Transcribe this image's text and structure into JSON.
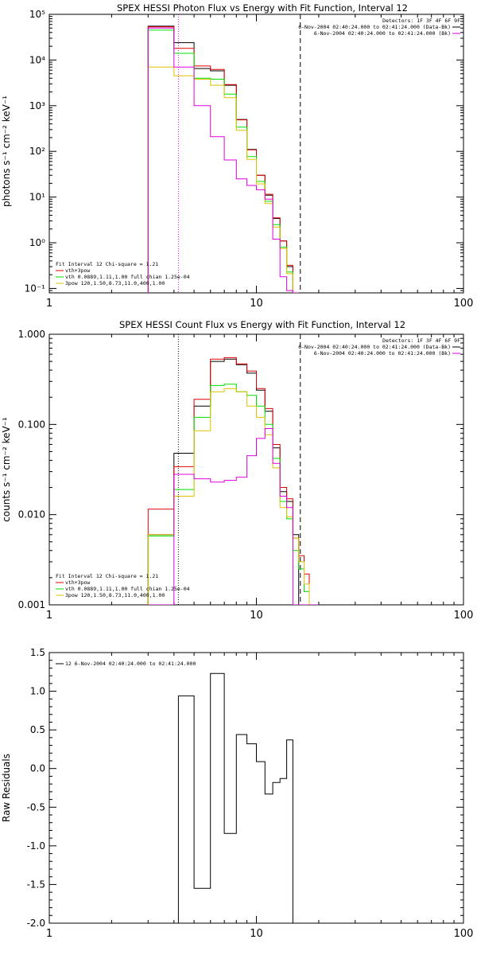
{
  "colors": {
    "black": "#000000",
    "red": "#e00000",
    "green": "#00e000",
    "yellow": "#e0c000",
    "magenta": "#e000e0"
  },
  "chart_data": [
    {
      "type": "line",
      "step": true,
      "title": "SPEX HESSI Photon Flux vs Energy with Fit Function, Interval 12",
      "ylabel": "photons s⁻¹ cm⁻² keV⁻¹",
      "xscale": "log",
      "yscale": "log",
      "xlim": [
        1,
        100
      ],
      "ylim": [
        0.08,
        100000
      ],
      "xticks": [
        {
          "v": 1,
          "label": "1"
        },
        {
          "v": 10,
          "label": "10"
        },
        {
          "v": 100,
          "label": "100"
        }
      ],
      "yticks": [
        {
          "v": 0.1,
          "label": "10⁻¹"
        },
        {
          "v": 1,
          "label": "10⁰"
        },
        {
          "v": 10,
          "label": "10¹"
        },
        {
          "v": 100,
          "label": "10²"
        },
        {
          "v": 1000,
          "label": "10³"
        },
        {
          "v": 10000,
          "label": "10⁴"
        },
        {
          "v": 100000,
          "label": "10⁵"
        }
      ],
      "edges": [
        3,
        4,
        5,
        6,
        7,
        8,
        9,
        10,
        11,
        12,
        13,
        14,
        15,
        16
      ],
      "series": [
        {
          "color": "black",
          "values": [
            55000,
            24000,
            6500,
            5800,
            2800,
            500,
            110,
            30,
            11,
            3.4,
            1.1,
            0.3,
            0.08
          ]
        },
        {
          "color": "red",
          "values": [
            53000,
            18000,
            7400,
            6200,
            2900,
            490,
            108,
            30,
            11.5,
            3.5,
            1.1,
            0.32,
            0.08
          ]
        },
        {
          "color": "green",
          "values": [
            45000,
            14000,
            4000,
            3800,
            1800,
            340,
            77,
            22,
            8.1,
            2.5,
            0.8,
            0.23,
            0.08
          ]
        },
        {
          "color": "yellow",
          "values": [
            7000,
            4500,
            3800,
            2800,
            1500,
            290,
            67,
            19.5,
            7.2,
            2.2,
            0.75,
            0.21,
            0.08
          ]
        },
        {
          "color": "magenta",
          "values": [
            50000,
            7000,
            1000,
            210,
            65,
            25,
            18,
            14.5,
            9,
            1.2,
            0.18,
            0.09,
            0.08
          ]
        }
      ],
      "vlines": [
        {
          "x": 4.2,
          "style": "dotted",
          "color": "magenta"
        },
        {
          "x": 16.3,
          "style": "dashed",
          "color": "black"
        }
      ],
      "legend_tr": {
        "lines": [
          {
            "text": "Detectors: 1F 3F 4F 6F 9F",
            "color": ""
          },
          {
            "text": "6-Nov-2004 02:40:24.000 to 02:41:24.000 (Data-Bk)",
            "color": "black"
          },
          {
            "text": "6-Nov-2004 02:40:24.000 to 02:41:24.000 (Bk)",
            "color": "magenta"
          }
        ]
      },
      "legend_bl": {
        "lines": [
          {
            "text": "Fit Interval 12   Chi-square = 1.21",
            "color": ""
          },
          {
            "text": "vth+3pow",
            "color": "red"
          },
          {
            "text": "vth 0.0889,1.11,1.00  full chian 1.25e-04",
            "color": "green"
          },
          {
            "text": "3pow 120,1.50,8.73,11.0,400,1.00",
            "color": "yellow"
          }
        ]
      }
    },
    {
      "type": "line",
      "step": true,
      "title": "SPEX HESSI Count Flux vs Energy with Fit Function, Interval 12",
      "ylabel": "counts s⁻¹ cm⁻² keV⁻¹",
      "xscale": "log",
      "yscale": "log",
      "xlim": [
        1,
        100
      ],
      "ylim": [
        0.001,
        1.0
      ],
      "xticks": [
        {
          "v": 1,
          "label": "1"
        },
        {
          "v": 10,
          "label": "10"
        },
        {
          "v": 100,
          "label": "100"
        }
      ],
      "yticks": [
        {
          "v": 0.001,
          "label": "0.001"
        },
        {
          "v": 0.01,
          "label": "0.010"
        },
        {
          "v": 0.1,
          "label": "0.100"
        },
        {
          "v": 1,
          "label": "1.000"
        }
      ],
      "edges": [
        3,
        4,
        5,
        6,
        7,
        8,
        9,
        10,
        11,
        12,
        13,
        14,
        15,
        16,
        17,
        18,
        19,
        20
      ],
      "series": [
        {
          "color": "black",
          "values": [
            0.006,
            0.048,
            0.16,
            0.5,
            0.53,
            0.46,
            0.37,
            0.24,
            0.14,
            0.055,
            0.018,
            0.014,
            0.006,
            0.001,
            0.001,
            0.001,
            0.001
          ]
        },
        {
          "color": "red",
          "values": [
            0.0115,
            0.034,
            0.19,
            0.53,
            0.55,
            0.47,
            0.39,
            0.25,
            0.15,
            0.06,
            0.02,
            0.015,
            0.0055,
            0.0035,
            0.0022,
            0.001,
            0.001
          ]
        },
        {
          "color": "green",
          "values": [
            0.0058,
            0.019,
            0.12,
            0.27,
            0.28,
            0.23,
            0.21,
            0.16,
            0.1,
            0.042,
            0.014,
            0.009,
            0.004,
            0.0025,
            0.0014,
            0.001,
            0.001
          ]
        },
        {
          "color": "yellow",
          "values": [
            0.006,
            0.016,
            0.085,
            0.23,
            0.25,
            0.23,
            0.16,
            0.12,
            0.077,
            0.033,
            0.012,
            0.0095,
            0.0055,
            0.003,
            0.0017,
            0.001,
            0.001
          ]
        },
        {
          "color": "magenta",
          "values": [
            0.001,
            0.028,
            0.025,
            0.023,
            0.024,
            0.026,
            0.045,
            0.07,
            0.09,
            0.037,
            0.016,
            0.012,
            0.001,
            0.001,
            0.001,
            0.001,
            0.001
          ]
        }
      ],
      "vlines": [
        {
          "x": 4.2,
          "style": "dotted",
          "color": "black"
        },
        {
          "x": 16.3,
          "style": "dashed",
          "color": "black"
        }
      ],
      "legend_tr": {
        "lines": [
          {
            "text": "Detectors: 1F 3F 4F 6F 9F",
            "color": ""
          },
          {
            "text": "6-Nov-2004 02:40:24.000 to 02:41:24.000 (Data-Bk)",
            "color": "black"
          },
          {
            "text": "6-Nov-2004 02:40:24.000 to 02:41:24.000 (Bk)",
            "color": "magenta"
          }
        ]
      },
      "legend_bl": {
        "lines": [
          {
            "text": "Fit Interval 12   Chi-square = 1.21",
            "color": ""
          },
          {
            "text": "vth+3pow",
            "color": "red"
          },
          {
            "text": "vth 0.0889,1.11,1.00  full chian 1.25e-04",
            "color": "green"
          },
          {
            "text": "3pow 120,1.50,8.73,11.0,400,1.00",
            "color": "yellow"
          }
        ]
      }
    },
    {
      "type": "line",
      "step": true,
      "title": "",
      "ylabel": "Raw Residuals",
      "xscale": "log",
      "yscale": "linear",
      "xlim": [
        1,
        100
      ],
      "ylim": [
        -2.0,
        1.5
      ],
      "xticks": [
        {
          "v": 1,
          "label": "1"
        },
        {
          "v": 10,
          "label": "10"
        },
        {
          "v": 100,
          "label": "100"
        }
      ],
      "yticks": [
        {
          "v": -2.0,
          "label": "-2.0"
        },
        {
          "v": -1.5,
          "label": "-1.5"
        },
        {
          "v": -1.0,
          "label": "-1.0"
        },
        {
          "v": -0.5,
          "label": "-0.5"
        },
        {
          "v": 0.0,
          "label": "0.0"
        },
        {
          "v": 0.5,
          "label": "0.5"
        },
        {
          "v": 1.0,
          "label": "1.0"
        },
        {
          "v": 1.5,
          "label": "1.5"
        }
      ],
      "edges": [
        4.2,
        5,
        6,
        7,
        8,
        9,
        10,
        11,
        12,
        13,
        14,
        15,
        16.3
      ],
      "series": [
        {
          "color": "black",
          "values": [
            0.94,
            -1.55,
            1.23,
            -0.84,
            0.44,
            0.32,
            0.09,
            -0.33,
            -0.18,
            -0.13,
            0.37,
            -2.0
          ]
        }
      ],
      "vlines": [],
      "legend_tl": {
        "lines": [
          {
            "text": "12  6-Nov-2004 02:40:24.000 to 02:41:24.000",
            "color": "black"
          }
        ]
      }
    }
  ]
}
